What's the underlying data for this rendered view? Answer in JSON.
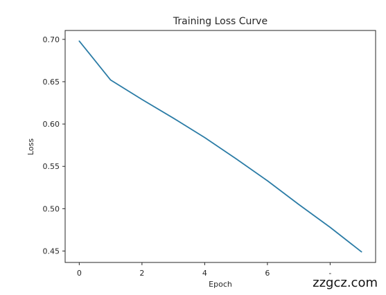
{
  "chart_data": {
    "type": "line",
    "title": "Training Loss Curve",
    "xlabel": "Epoch",
    "ylabel": "Loss",
    "x": [
      0,
      1,
      2,
      3,
      4,
      5,
      6,
      7,
      8,
      9
    ],
    "series": [
      {
        "values": [
          0.698,
          0.652,
          0.629,
          0.607,
          0.584,
          0.559,
          0.533,
          0.505,
          0.478,
          0.449
        ],
        "color": "#2b7ca6"
      }
    ],
    "xlim": [
      -0.45,
      9.45
    ],
    "ylim": [
      0.4365,
      0.7105
    ],
    "xticks": [
      0,
      2,
      4,
      6,
      8
    ],
    "xtick_labels": [
      "0",
      "2",
      "4",
      "6",
      "-"
    ],
    "yticks": [
      0.45,
      0.5,
      0.55,
      0.6,
      0.65,
      0.7
    ],
    "ytick_labels": [
      "0.45",
      "0.50",
      "0.55",
      "0.60",
      "0.65",
      "0.70"
    ],
    "grid": false,
    "legend": "none"
  },
  "watermark": "zzgcz.com"
}
